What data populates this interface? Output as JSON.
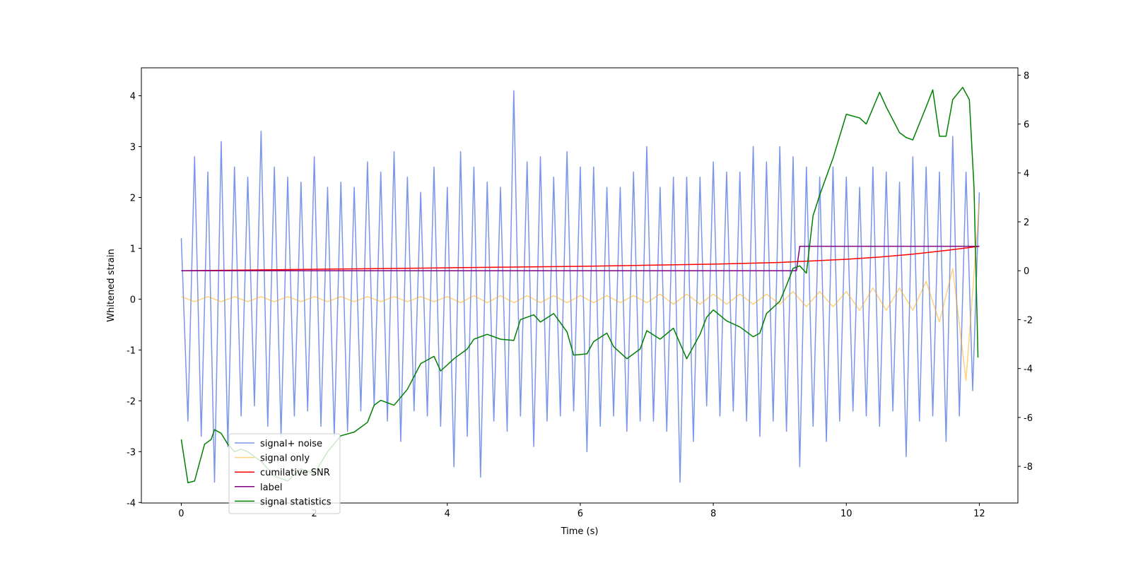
{
  "chart_data": {
    "type": "line",
    "xlabel": "Time (s)",
    "ylabel": "Whitened strain",
    "xlim": [
      -0.6,
      12.58
    ],
    "xticks": [
      0,
      2,
      4,
      6,
      8,
      10,
      12
    ],
    "ylim": [
      -4.01,
      4.55
    ],
    "yticks": [
      -4,
      -3,
      -2,
      -1,
      0,
      1,
      2,
      3,
      4
    ],
    "y2lim": [
      -9.5,
      8.3
    ],
    "y2ticks": [
      -8,
      -6,
      -4,
      -2,
      0,
      2,
      4,
      6,
      8
    ],
    "legend": "lower left",
    "series": [
      {
        "name": "signal+ noise",
        "color": "#4169e1",
        "opacity": 0.7,
        "x": [
          0,
          0.1,
          0.2,
          0.3,
          0.4,
          0.5,
          0.6,
          0.7,
          0.8,
          0.9,
          1,
          1.1,
          1.2,
          1.3,
          1.4,
          1.5,
          1.6,
          1.7,
          1.8,
          1.9,
          2,
          2.1,
          2.2,
          2.3,
          2.4,
          2.5,
          2.6,
          2.7,
          2.8,
          2.9,
          3,
          3.1,
          3.2,
          3.3,
          3.4,
          3.5,
          3.6,
          3.7,
          3.8,
          3.9,
          4,
          4.1,
          4.2,
          4.3,
          4.4,
          4.5,
          4.6,
          4.7,
          4.8,
          4.9,
          5,
          5.1,
          5.2,
          5.3,
          5.4,
          5.5,
          5.6,
          5.7,
          5.8,
          5.9,
          6,
          6.1,
          6.2,
          6.3,
          6.4,
          6.5,
          6.6,
          6.7,
          6.8,
          6.9,
          7,
          7.1,
          7.2,
          7.3,
          7.4,
          7.5,
          7.6,
          7.7,
          7.8,
          7.9,
          8,
          8.1,
          8.2,
          8.3,
          8.4,
          8.5,
          8.6,
          8.7,
          8.8,
          8.9,
          9,
          9.1,
          9.2,
          9.3,
          9.4,
          9.5,
          9.6,
          9.7,
          9.8,
          9.9,
          10,
          10.1,
          10.2,
          10.3,
          10.4,
          10.5,
          10.6,
          10.7,
          10.8,
          10.9,
          11,
          11.1,
          11.2,
          11.3,
          11.4,
          11.5,
          11.6,
          11.7,
          11.8,
          11.9,
          12
        ],
        "values": [
          1.2,
          -2.4,
          2.8,
          -2.7,
          2.5,
          -3.6,
          3.1,
          -2.9,
          2.6,
          -2.3,
          2.4,
          -2.1,
          3.3,
          -2.5,
          2.6,
          -2.7,
          2.4,
          -2.3,
          2.3,
          -2.2,
          2.8,
          -2.5,
          2.2,
          -2.7,
          2.3,
          -2.6,
          2.2,
          -2.2,
          2.7,
          -2.1,
          2.5,
          -2.4,
          2.9,
          -2.8,
          2.4,
          -2.2,
          2.1,
          -2.3,
          2.6,
          -2.5,
          2.2,
          -3.3,
          2.9,
          -2.7,
          2.6,
          -3.5,
          2.3,
          -2.4,
          2.2,
          -2.6,
          4.1,
          -2.3,
          2.7,
          -2.9,
          2.8,
          -2.4,
          2.4,
          -2.3,
          2.9,
          -2.2,
          2.6,
          -3.0,
          2.6,
          -2.5,
          2.2,
          -2.3,
          2.2,
          -2.6,
          2.5,
          -2.4,
          3.0,
          -2.4,
          2.2,
          -2.6,
          2.4,
          -3.6,
          2.4,
          -2.8,
          2.4,
          -2.1,
          2.7,
          -2.3,
          2.5,
          -2.2,
          2.5,
          -2.4,
          3.0,
          -2.7,
          2.7,
          -2.4,
          3.0,
          -2.6,
          2.8,
          -3.3,
          2.6,
          -2.5,
          2.4,
          -2.8,
          2.6,
          -2.4,
          2.4,
          -2.2,
          2.2,
          -2.3,
          2.6,
          -2.5,
          2.5,
          -2.2,
          2.3,
          -3.1,
          2.8,
          -2.4,
          2.6,
          -2.3,
          2.5,
          -2.8,
          3.2,
          -2.3,
          2.5,
          -1.8,
          2.1
        ]
      },
      {
        "name": "signal only",
        "color": "#ffa500",
        "opacity": 0.5,
        "x": [
          0,
          0.2,
          0.4,
          0.6,
          0.8,
          1,
          1.2,
          1.4,
          1.6,
          1.8,
          2,
          2.2,
          2.4,
          2.6,
          2.8,
          3,
          3.2,
          3.4,
          3.6,
          3.8,
          4,
          4.2,
          4.4,
          4.6,
          4.8,
          5,
          5.2,
          5.4,
          5.6,
          5.8,
          6,
          6.2,
          6.4,
          6.6,
          6.8,
          7,
          7.2,
          7.4,
          7.6,
          7.8,
          8,
          8.2,
          8.4,
          8.6,
          8.8,
          9,
          9.2,
          9.4,
          9.6,
          9.8,
          10,
          10.2,
          10.4,
          10.6,
          10.8,
          11,
          11.2,
          11.4,
          11.6,
          11.8,
          12
        ],
        "values": [
          0.05,
          -0.05,
          0.05,
          -0.05,
          0.05,
          -0.05,
          0.05,
          -0.05,
          0.05,
          -0.05,
          0.05,
          -0.05,
          0.05,
          -0.05,
          0.05,
          -0.05,
          0.05,
          -0.05,
          0.05,
          -0.05,
          0.05,
          -0.07,
          0.07,
          -0.07,
          0.07,
          -0.07,
          0.07,
          -0.07,
          0.07,
          -0.07,
          0.07,
          -0.07,
          0.07,
          -0.07,
          0.07,
          -0.07,
          0.1,
          -0.1,
          0.1,
          -0.1,
          0.1,
          -0.1,
          0.1,
          -0.1,
          0.1,
          -0.1,
          0.15,
          -0.15,
          0.15,
          -0.15,
          0.15,
          -0.22,
          0.22,
          -0.22,
          0.22,
          -0.22,
          0.35,
          -0.45,
          0.6,
          -1.6,
          1.9
        ]
      },
      {
        "name": "cumilative SNR",
        "color": "#ff0000",
        "axis": "y2",
        "x": [
          0,
          2,
          4,
          6,
          8,
          9,
          10,
          10.5,
          11,
          11.5,
          11.8,
          12
        ],
        "values": [
          0,
          0.06,
          0.12,
          0.18,
          0.27,
          0.34,
          0.47,
          0.56,
          0.68,
          0.83,
          0.93,
          1.0
        ]
      },
      {
        "name": "label",
        "color": "#800080",
        "axis": "y2",
        "x": [
          0,
          9.25,
          9.3,
          12
        ],
        "values": [
          0,
          0,
          1,
          1
        ]
      },
      {
        "name": "signal statistics",
        "color": "#008000",
        "axis": "y2",
        "x": [
          0,
          0.1,
          0.2,
          0.35,
          0.45,
          0.5,
          0.6,
          0.7,
          0.8,
          0.9,
          1.0,
          1.2,
          1.4,
          1.6,
          1.8,
          2.0,
          2.2,
          2.4,
          2.6,
          2.8,
          2.9,
          3.0,
          3.2,
          3.4,
          3.6,
          3.8,
          3.9,
          4.1,
          4.3,
          4.4,
          4.6,
          4.8,
          5.0,
          5.1,
          5.3,
          5.4,
          5.6,
          5.8,
          5.9,
          6.1,
          6.2,
          6.4,
          6.5,
          6.7,
          6.9,
          7.0,
          7.2,
          7.4,
          7.6,
          7.8,
          7.9,
          8.0,
          8.2,
          8.4,
          8.6,
          8.7,
          8.8,
          9.0,
          9.1,
          9.2,
          9.3,
          9.4,
          9.5,
          9.6,
          9.8,
          10.0,
          10.2,
          10.3,
          10.5,
          10.6,
          10.8,
          10.9,
          11.0,
          11.2,
          11.3,
          11.4,
          11.5,
          11.6,
          11.75,
          11.85,
          11.92,
          11.98
        ],
        "values": [
          -6.9,
          -8.67,
          -8.6,
          -7.1,
          -6.9,
          -6.5,
          -6.65,
          -7.1,
          -7.4,
          -7.3,
          -7.4,
          -7.8,
          -8.4,
          -8.6,
          -8.1,
          -8.3,
          -7.4,
          -6.75,
          -6.6,
          -6.2,
          -5.5,
          -5.3,
          -5.5,
          -4.85,
          -3.8,
          -3.5,
          -4.1,
          -3.6,
          -3.2,
          -2.8,
          -2.6,
          -2.8,
          -2.85,
          -2.0,
          -1.8,
          -2.1,
          -1.75,
          -2.5,
          -3.45,
          -3.4,
          -2.9,
          -2.55,
          -3.1,
          -3.6,
          -3.2,
          -2.45,
          -2.8,
          -2.35,
          -3.6,
          -2.6,
          -1.9,
          -1.6,
          -2.05,
          -2.3,
          -2.7,
          -2.55,
          -1.75,
          -1.25,
          -0.6,
          0.1,
          0.2,
          -0.1,
          2.25,
          3.1,
          4.6,
          6.4,
          6.25,
          6.0,
          7.3,
          6.7,
          5.65,
          5.45,
          5.35,
          6.7,
          7.4,
          5.5,
          5.5,
          7.0,
          7.5,
          7.0,
          3.4,
          -3.55
        ]
      }
    ]
  }
}
